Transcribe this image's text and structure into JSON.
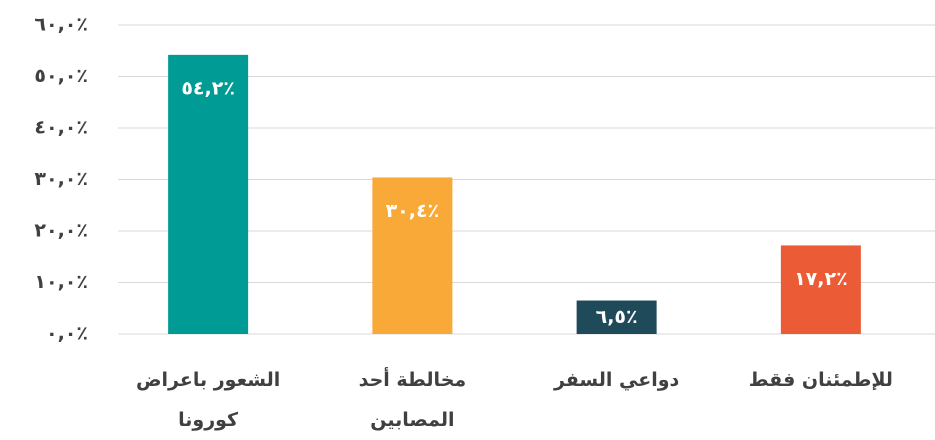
{
  "chart_data": {
    "type": "bar",
    "categories": [
      "الشعور باعراض كورونا",
      "مخالطة أحد المصابين",
      "دواعي السفر",
      "للإطمئنان فقط"
    ],
    "values": [
      54.2,
      30.4,
      6.5,
      17.2
    ],
    "value_labels": [
      "٥٤,٢٪",
      "٣٠,٤٪",
      "٦,٥٪",
      "١٧,٢٪"
    ],
    "colors": [
      "#009b95",
      "#f9a937",
      "#1f4a5a",
      "#ea5b36"
    ],
    "ylim": [
      0,
      60
    ],
    "yticks": [
      {
        "value": 0,
        "label": "٠,٠٪"
      },
      {
        "value": 10,
        "label": "١٠,٠٪"
      },
      {
        "value": 20,
        "label": "٢٠,٠٪"
      },
      {
        "value": 30,
        "label": "٣٠,٠٪"
      },
      {
        "value": 40,
        "label": "٤٠,٠٪"
      },
      {
        "value": 50,
        "label": "٥٠,٠٪"
      },
      {
        "value": 60,
        "label": "٦٠,٠٪"
      }
    ],
    "grid": true
  }
}
